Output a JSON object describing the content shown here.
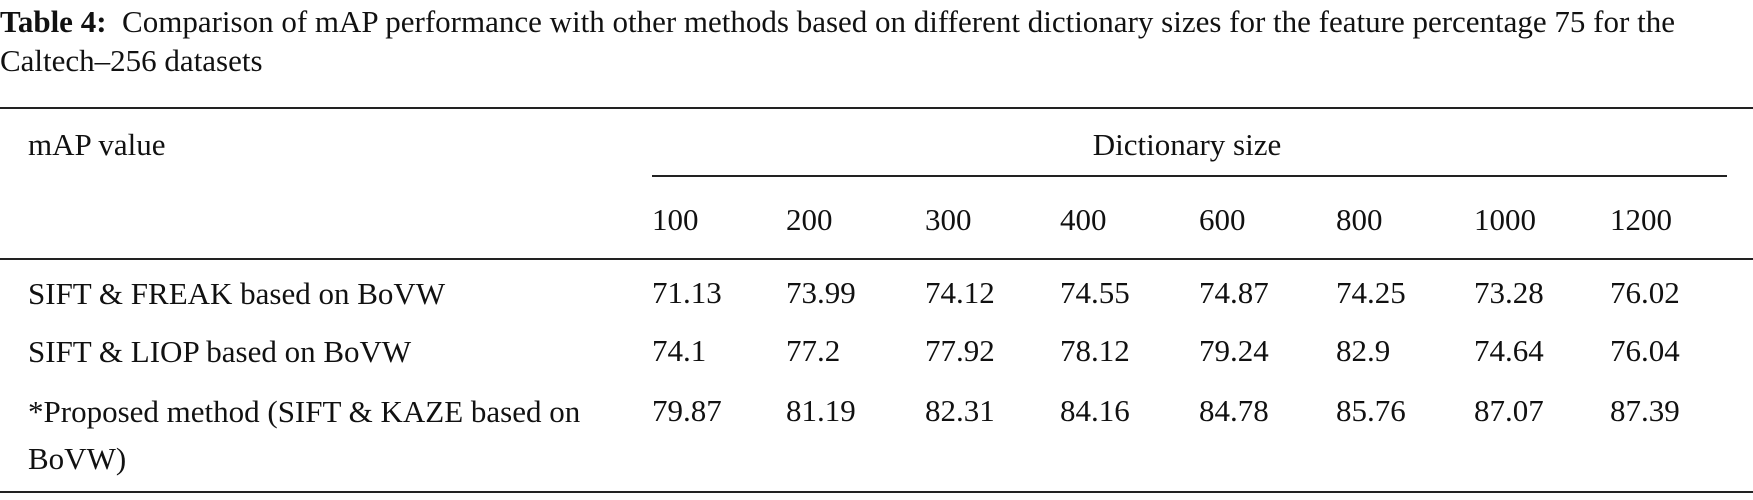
{
  "caption": {
    "label": "Table 4:",
    "text": "Comparison of mAP performance with other methods based on different dictionary sizes for the feature percentage 75 for the Caltech–256 datasets"
  },
  "table": {
    "row_header": "mAP value",
    "group_header": "Dictionary size",
    "columns": [
      "100",
      "200",
      "300",
      "400",
      "600",
      "800",
      "1000",
      "1200"
    ],
    "rows": [
      [
        "SIFT & FREAK based on BoVW",
        "71.13",
        "73.99",
        "74.12",
        "74.55",
        "74.87",
        "74.25",
        "73.28",
        "76.02"
      ],
      [
        "SIFT & LIOP based on BoVW",
        "74.1",
        "77.2",
        "77.92",
        "78.12",
        "79.24",
        "82.9",
        "74.64",
        "76.04"
      ],
      [
        "*Proposed method (SIFT & KAZE based on BoVW)",
        "79.87",
        "81.19",
        "82.31",
        "84.16",
        "84.78",
        "85.76",
        "87.07",
        "87.39"
      ]
    ]
  }
}
